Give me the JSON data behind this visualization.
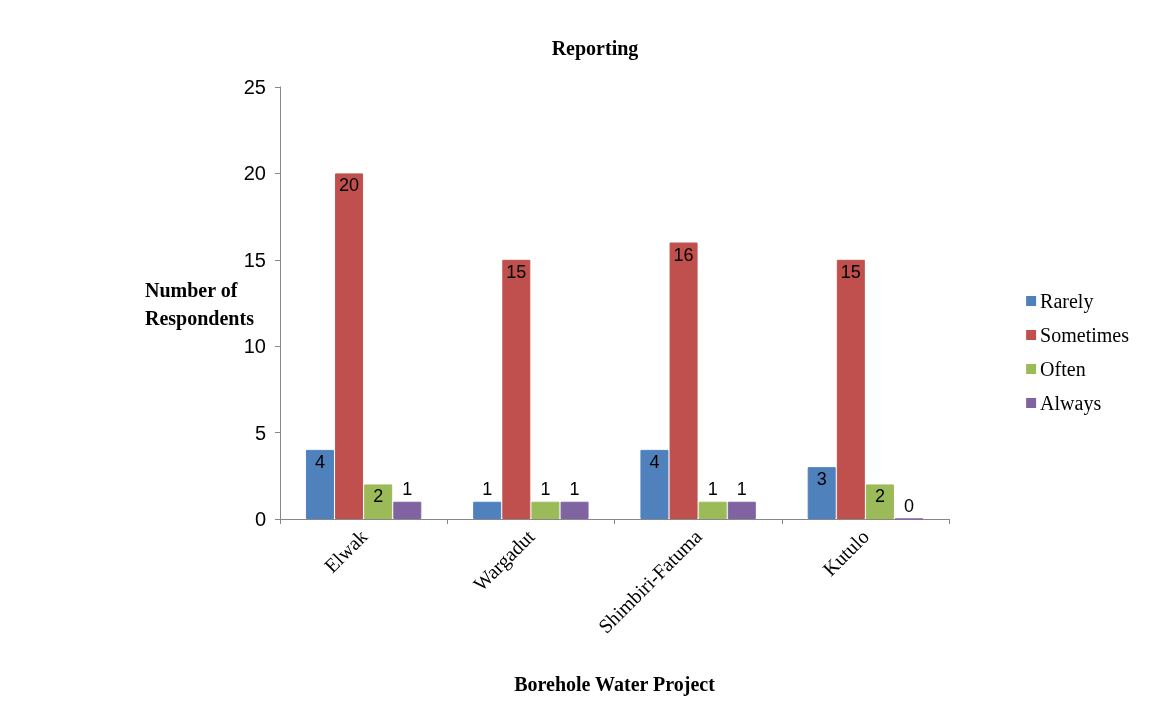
{
  "chart_data": {
    "type": "bar",
    "title": "Reporting",
    "xlabel": "Borehole Water Project",
    "ylabel": "Number of Respondents",
    "categories": [
      "Elwak",
      "Wargadut",
      "Shimbiri-Fatuma",
      "Kutulo"
    ],
    "series": [
      {
        "name": "Rarely",
        "color": "#4f81bd",
        "values": [
          4,
          1,
          4,
          3
        ]
      },
      {
        "name": "Sometimes",
        "color": "#c0504d",
        "values": [
          20,
          15,
          16,
          15
        ]
      },
      {
        "name": "Often",
        "color": "#9bbb59",
        "values": [
          2,
          1,
          1,
          2
        ]
      },
      {
        "name": "Always",
        "color": "#8064a2",
        "values": [
          1,
          1,
          1,
          0
        ]
      }
    ],
    "ylim": [
      0,
      25
    ],
    "yticks": [
      0,
      5,
      10,
      15,
      20,
      25
    ],
    "grid": false,
    "legend": "right",
    "data_labels": true
  }
}
